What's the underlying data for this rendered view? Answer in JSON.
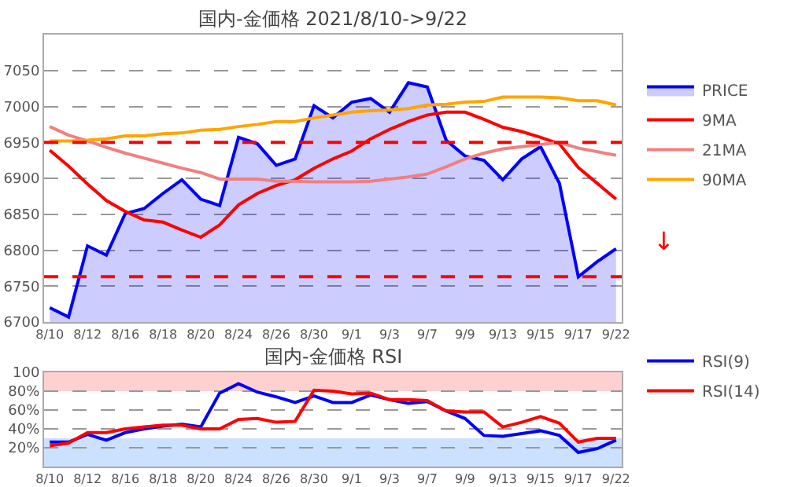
{
  "chart_data": [
    {
      "type": "line",
      "title": "国内-金価格 2021/8/10->9/22",
      "categories": [
        "8/10",
        null,
        "8/12",
        null,
        "8/16",
        null,
        "8/18",
        null,
        "8/20",
        null,
        "8/24",
        null,
        "8/26",
        null,
        "8/30",
        null,
        "9/1",
        null,
        "9/3",
        null,
        "9/7",
        null,
        "9/9",
        null,
        "9/13",
        null,
        "9/15",
        null,
        "9/17",
        null,
        "9/22"
      ],
      "series": [
        {
          "name": "PRICE",
          "type": "area",
          "color": "#0000ff",
          "values": [
            6720,
            6707,
            6806,
            6793,
            6851,
            6858,
            6879,
            6898,
            6871,
            6862,
            6957,
            6948,
            6918,
            6927,
            7001,
            6984,
            7006,
            7011,
            6992,
            7033,
            7027,
            6953,
            6931,
            6925,
            6898,
            6927,
            6944,
            6893,
            6763,
            6784,
            6802
          ]
        },
        {
          "name": "9MA",
          "color": "#ff0000",
          "values": [
            6939,
            6917,
            6892,
            6869,
            6854,
            6842,
            6839,
            6828,
            6818,
            6835,
            6863,
            6879,
            6890,
            6898,
            6914,
            6927,
            6938,
            6955,
            6968,
            6979,
            6988,
            6992,
            6992,
            6982,
            6971,
            6965,
            6957,
            6948,
            6915,
            6893,
            6871
          ]
        },
        {
          "name": "21MA",
          "color": "#f08080",
          "values": [
            6972,
            6960,
            6952,
            6943,
            6935,
            6928,
            6921,
            6914,
            6908,
            6899,
            6899,
            6899,
            6896,
            6896,
            6895,
            6895,
            6895,
            6896,
            6899,
            6902,
            6906,
            6916,
            6927,
            6935,
            6941,
            6944,
            6947,
            6950,
            6942,
            6937,
            6932
          ]
        },
        {
          "name": "90MA",
          "color": "#ffa500",
          "values": [
            6952,
            6952,
            6953,
            6955,
            6959,
            6959,
            6962,
            6963,
            6967,
            6968,
            6972,
            6975,
            6979,
            6979,
            6984,
            6988,
            6992,
            6994,
            6995,
            6997,
            7002,
            7003,
            7006,
            7007,
            7013,
            7013,
            7013,
            7012,
            7008,
            7008,
            7002
          ]
        }
      ],
      "ylim": [
        6700,
        7100
      ],
      "yticks": [
        6700,
        6750,
        6800,
        6850,
        6900,
        6950,
        7000,
        7050
      ],
      "ref_lines": [
        {
          "axis": "y",
          "value": 6950,
          "color": "#ff0000",
          "line_style": "dashed"
        },
        {
          "axis": "y",
          "value": 6763,
          "color": "#ff0000",
          "line_style": "dashed"
        }
      ],
      "annotations": [
        "↓"
      ],
      "grid": "y",
      "legend": "right",
      "marker": "none",
      "line_style": "solid"
    },
    {
      "type": "line",
      "title": "国内-金価格 RSI",
      "categories": [
        "8/10",
        null,
        "8/12",
        null,
        "8/16",
        null,
        "8/18",
        null,
        "8/20",
        null,
        "8/24",
        null,
        "8/26",
        null,
        "8/30",
        null,
        "9/1",
        null,
        "9/3",
        null,
        "9/7",
        null,
        "9/9",
        null,
        "9/13",
        null,
        "9/15",
        null,
        "9/17",
        null,
        "9/22"
      ],
      "series": [
        {
          "name": "RSI(9)",
          "color": "#0000ff",
          "values": [
            26,
            26,
            34,
            28,
            36,
            40,
            43,
            45,
            42,
            78,
            88,
            79,
            74,
            68,
            75,
            68,
            68,
            76,
            71,
            67,
            69,
            59,
            51,
            33,
            32,
            35,
            38,
            33,
            15,
            19,
            28
          ]
        },
        {
          "name": "RSI(14)",
          "color": "#ff0000",
          "values": [
            22,
            25,
            36,
            36,
            40,
            42,
            44,
            44,
            40,
            40,
            50,
            51,
            47,
            48,
            81,
            80,
            77,
            78,
            71,
            71,
            70,
            59,
            58,
            58,
            42,
            47,
            53,
            46,
            26,
            30,
            30
          ]
        }
      ],
      "ylim": [
        0,
        100
      ],
      "yticks": [
        {
          "value": 20,
          "label": "20%"
        },
        {
          "value": 40,
          "label": "40%"
        },
        {
          "value": 60,
          "label": "60%"
        },
        {
          "value": 80,
          "label": "80%"
        },
        100
      ],
      "bands": [
        {
          "axis": "y",
          "from": 80,
          "to": 100,
          "color": "#ffd0d0"
        },
        {
          "axis": "y",
          "from": 0,
          "to": 30,
          "color": "#cce0ff"
        }
      ],
      "grid": "y",
      "legend": "right",
      "marker": "none",
      "line_style": "solid"
    }
  ]
}
